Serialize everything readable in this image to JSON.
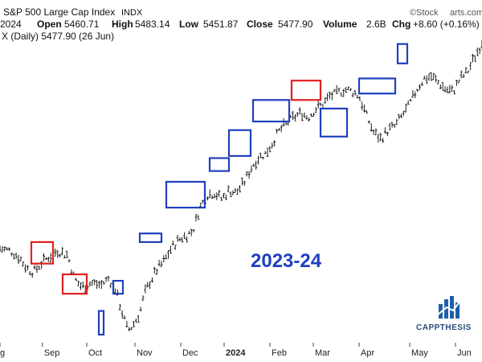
{
  "header": {
    "line1": {
      "symbol_suffix": "S&P 500 Large Cap Index",
      "exchange": "INDX",
      "watermark": "©Stock",
      "watermark2": "arts.com"
    },
    "line2": {
      "date": "2024",
      "open_label": "Open",
      "open": "5460.71",
      "high_label": "High",
      "high": "5483.14",
      "low_label": "Low",
      "low": "5451.87",
      "close_label": "Close",
      "close": "5477.90",
      "volume_label": "Volume",
      "volume": "2.6B",
      "chg_label": "Chg",
      "chg": "+8.60 (+0.16%)"
    },
    "line3": "X (Daily) 5477.90 (26 Jun)"
  },
  "annotation": "2023-24",
  "brand": {
    "name": "CAPPTHESIS",
    "logo_icon": "bar-chart-arrow-icon"
  },
  "colors": {
    "price": "#1a1a1a",
    "blue_box": "#1f3fbf",
    "red_box": "#e02020",
    "annotation": "#1f3fbf"
  },
  "chart_data": {
    "type": "line",
    "style": "ohlc",
    "x_tick_labels": [
      "g",
      "Sep",
      "Oct",
      "Nov",
      "Dec",
      "2024",
      "Feb",
      "Mar",
      "Apr",
      "May",
      "Jun"
    ],
    "bold_tick": "2024",
    "grid": false,
    "price_path": [
      [
        0.0,
        4510
      ],
      [
        0.02,
        4500
      ],
      [
        0.04,
        4470
      ],
      [
        0.055,
        4420
      ],
      [
        0.07,
        4400
      ],
      [
        0.085,
        4440
      ],
      [
        0.1,
        4470
      ],
      [
        0.12,
        4500
      ],
      [
        0.14,
        4480
      ],
      [
        0.155,
        4370
      ],
      [
        0.17,
        4330
      ],
      [
        0.19,
        4350
      ],
      [
        0.21,
        4340
      ],
      [
        0.225,
        4370
      ],
      [
        0.24,
        4320
      ],
      [
        0.255,
        4200
      ],
      [
        0.265,
        4130
      ],
      [
        0.275,
        4150
      ],
      [
        0.29,
        4210
      ],
      [
        0.3,
        4300
      ],
      [
        0.31,
        4350
      ],
      [
        0.325,
        4410
      ],
      [
        0.34,
        4450
      ],
      [
        0.355,
        4510
      ],
      [
        0.37,
        4550
      ],
      [
        0.385,
        4570
      ],
      [
        0.4,
        4590
      ],
      [
        0.415,
        4700
      ],
      [
        0.43,
        4760
      ],
      [
        0.445,
        4770
      ],
      [
        0.46,
        4740
      ],
      [
        0.475,
        4780
      ],
      [
        0.49,
        4770
      ],
      [
        0.505,
        4810
      ],
      [
        0.52,
        4880
      ],
      [
        0.535,
        4930
      ],
      [
        0.55,
        4950
      ],
      [
        0.565,
        5000
      ],
      [
        0.58,
        5060
      ],
      [
        0.595,
        5090
      ],
      [
        0.61,
        5120
      ],
      [
        0.625,
        5140
      ],
      [
        0.64,
        5120
      ],
      [
        0.655,
        5160
      ],
      [
        0.67,
        5180
      ],
      [
        0.685,
        5220
      ],
      [
        0.7,
        5230
      ],
      [
        0.715,
        5250
      ],
      [
        0.73,
        5240
      ],
      [
        0.745,
        5220
      ],
      [
        0.76,
        5130
      ],
      [
        0.775,
        5050
      ],
      [
        0.79,
        5020
      ],
      [
        0.805,
        5060
      ],
      [
        0.82,
        5080
      ],
      [
        0.835,
        5130
      ],
      [
        0.85,
        5180
      ],
      [
        0.865,
        5250
      ],
      [
        0.88,
        5300
      ],
      [
        0.895,
        5310
      ],
      [
        0.91,
        5280
      ],
      [
        0.925,
        5250
      ],
      [
        0.94,
        5240
      ],
      [
        0.955,
        5300
      ],
      [
        0.97,
        5330
      ],
      [
        0.985,
        5400
      ],
      [
        1.0,
        5470
      ]
    ],
    "consolidation_boxes": [
      {
        "color": "red",
        "x0": 0.065,
        "x1": 0.11,
        "y0": 4440,
        "y1": 4540
      },
      {
        "color": "red",
        "x0": 0.13,
        "x1": 0.18,
        "y0": 4300,
        "y1": 4390
      },
      {
        "color": "blue",
        "x0": 0.205,
        "x1": 0.215,
        "y0": 4110,
        "y1": 4220
      },
      {
        "color": "blue",
        "x0": 0.235,
        "x1": 0.255,
        "y0": 4300,
        "y1": 4360
      },
      {
        "color": "blue",
        "x0": 0.29,
        "x1": 0.335,
        "y0": 4540,
        "y1": 4580
      },
      {
        "color": "blue",
        "x0": 0.345,
        "x1": 0.425,
        "y0": 4700,
        "y1": 4820
      },
      {
        "color": "blue",
        "x0": 0.435,
        "x1": 0.475,
        "y0": 4870,
        "y1": 4930
      },
      {
        "color": "blue",
        "x0": 0.475,
        "x1": 0.52,
        "y0": 4940,
        "y1": 5060
      },
      {
        "color": "blue",
        "x0": 0.525,
        "x1": 0.6,
        "y0": 5100,
        "y1": 5200
      },
      {
        "color": "red",
        "x0": 0.605,
        "x1": 0.665,
        "y0": 5200,
        "y1": 5290
      },
      {
        "color": "blue",
        "x0": 0.665,
        "x1": 0.72,
        "y0": 5030,
        "y1": 5160
      },
      {
        "color": "blue",
        "x0": 0.745,
        "x1": 0.82,
        "y0": 5230,
        "y1": 5300
      },
      {
        "color": "blue",
        "x0": 0.825,
        "x1": 0.845,
        "y0": 5370,
        "y1": 5460
      }
    ]
  }
}
